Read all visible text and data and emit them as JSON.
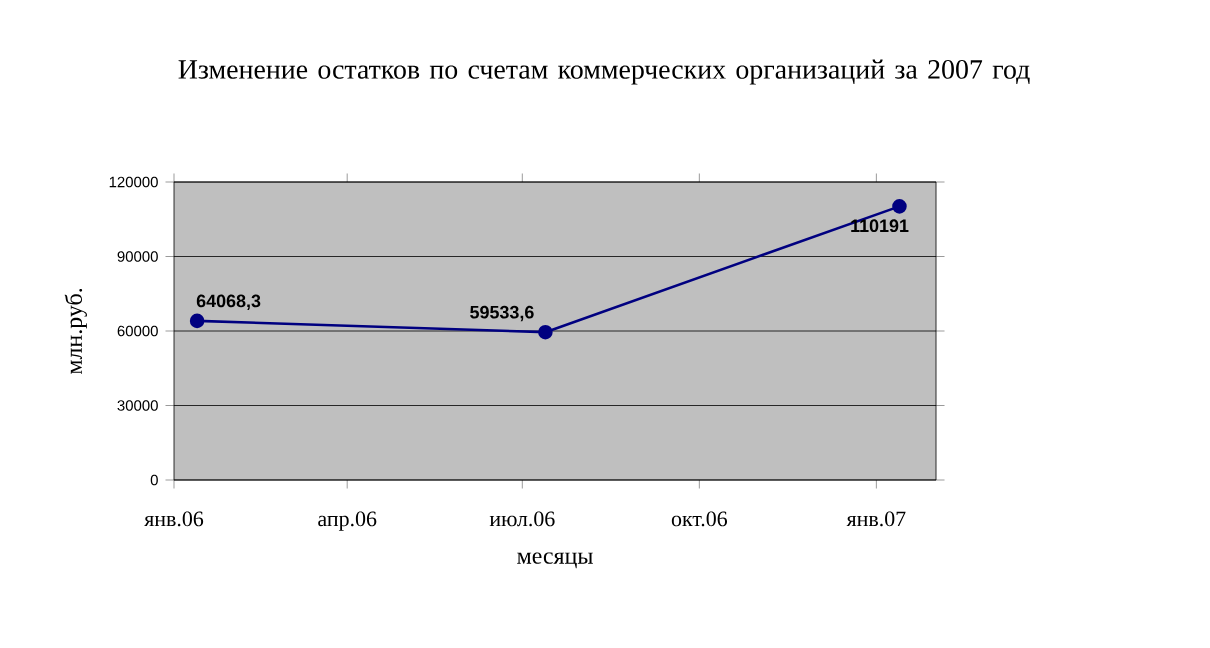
{
  "chart_data": {
    "type": "line",
    "title": "Изменение остатков по счетам коммерческих организаций за 2007 год",
    "xlabel": "месяцы",
    "ylabel": "млн.руб.",
    "x": [
      "2006-01-13",
      "2006-07-13",
      "2007-01-13"
    ],
    "series": [
      {
        "color": "#000080",
        "values": [
          64068.3,
          59533.6,
          110191
        ],
        "value_labels": [
          "64068,3",
          "59533,6",
          "110191"
        ]
      }
    ],
    "xlim": [
      "2006-01-01",
      "2007-02-01"
    ],
    "xticks": [
      {
        "value": "2006-01-01",
        "label": "янв.06"
      },
      {
        "value": "2006-04-01",
        "label": "апр.06"
      },
      {
        "value": "2006-07-01",
        "label": "июл.06"
      },
      {
        "value": "2006-10-01",
        "label": "окт.06"
      },
      {
        "value": "2007-01-01",
        "label": "янв.07"
      }
    ],
    "ylim": [
      0,
      120000
    ],
    "yticks": [
      0,
      30000,
      60000,
      90000,
      120000
    ],
    "grid": "y",
    "marker": "circle",
    "line_style": "solid"
  }
}
